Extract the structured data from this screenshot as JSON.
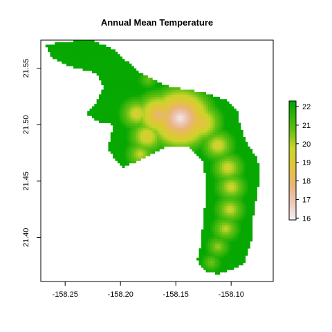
{
  "chart_data": {
    "type": "heatmap",
    "title": "Annual Mean Temperature",
    "xlabel": "",
    "ylabel": "",
    "xlim": [
      -158.272,
      -158.062
    ],
    "ylim": [
      21.361,
      21.575
    ],
    "x_ticks": [
      -158.25,
      -158.2,
      -158.15,
      -158.1
    ],
    "x_tick_labels": [
      "-158.25",
      "-158.20",
      "-158.15",
      "-158.10"
    ],
    "y_ticks": [
      21.4,
      21.45,
      21.5,
      21.55
    ],
    "y_tick_labels": [
      "21.40",
      "21.45",
      "21.50",
      "21.55"
    ],
    "legend": {
      "placement": "right",
      "range": [
        15.9,
        22.3
      ],
      "ticks": [
        16,
        17,
        18,
        19,
        20,
        21,
        22
      ],
      "tick_labels": [
        "16",
        "17",
        "18",
        "19",
        "20",
        "21",
        "22"
      ]
    },
    "color_scale": [
      {
        "value": 15.9,
        "color": "#f2f2f2"
      },
      {
        "value": 16.8,
        "color": "#eec9bd"
      },
      {
        "value": 17.8,
        "color": "#e8b47a"
      },
      {
        "value": 18.8,
        "color": "#e3c43a"
      },
      {
        "value": 19.8,
        "color": "#c9d52a"
      },
      {
        "value": 20.8,
        "color": "#5fbf12"
      },
      {
        "value": 22.3,
        "color": "#00a600"
      }
    ],
    "nodata_color": "#ffffff",
    "grid": false,
    "ridge": [
      {
        "x": -158.146,
        "y": 21.506,
        "v": 16.0
      },
      {
        "x": -158.165,
        "y": 21.509,
        "v": 17.6
      },
      {
        "x": -158.185,
        "y": 21.51,
        "v": 19.1
      },
      {
        "x": -158.176,
        "y": 21.49,
        "v": 18.9
      },
      {
        "x": -158.182,
        "y": 21.474,
        "v": 19.6
      },
      {
        "x": -158.128,
        "y": 21.502,
        "v": 18.2
      },
      {
        "x": -158.112,
        "y": 21.482,
        "v": 19.2
      },
      {
        "x": -158.103,
        "y": 21.462,
        "v": 19.3
      },
      {
        "x": -158.1,
        "y": 21.445,
        "v": 19.4
      },
      {
        "x": -158.101,
        "y": 21.425,
        "v": 19.5
      },
      {
        "x": -158.105,
        "y": 21.408,
        "v": 19.7
      },
      {
        "x": -158.112,
        "y": 21.392,
        "v": 20.1
      },
      {
        "x": -158.118,
        "y": 21.378,
        "v": 20.5
      },
      {
        "x": -158.175,
        "y": 21.54,
        "v": 20.6
      }
    ],
    "extent": [
      [
        -158.268,
        21.571
      ],
      [
        -158.25,
        21.573
      ],
      [
        -158.228,
        21.576
      ],
      [
        -158.205,
        21.566
      ],
      [
        -158.185,
        21.548
      ],
      [
        -158.16,
        21.535
      ],
      [
        -158.14,
        21.531
      ],
      [
        -158.125,
        21.529
      ],
      [
        -158.105,
        21.522
      ],
      [
        -158.095,
        21.514
      ],
      [
        -158.092,
        21.5
      ],
      [
        -158.086,
        21.484
      ],
      [
        -158.078,
        21.472
      ],
      [
        -158.074,
        21.462
      ],
      [
        -158.076,
        21.442
      ],
      [
        -158.08,
        21.42
      ],
      [
        -158.082,
        21.396
      ],
      [
        -158.088,
        21.378
      ],
      [
        -158.098,
        21.372
      ],
      [
        -158.112,
        21.368
      ],
      [
        -158.125,
        21.371
      ],
      [
        -158.131,
        21.38
      ],
      [
        -158.128,
        21.392
      ],
      [
        -158.126,
        21.408
      ],
      [
        -158.124,
        21.425
      ],
      [
        -158.122,
        21.44
      ],
      [
        -158.124,
        21.458
      ],
      [
        -158.126,
        21.468
      ],
      [
        -158.138,
        21.48
      ],
      [
        -158.158,
        21.481
      ],
      [
        -158.176,
        21.472
      ],
      [
        -158.198,
        21.462
      ],
      [
        -158.212,
        21.478
      ],
      [
        -158.209,
        21.49
      ],
      [
        -158.206,
        21.5
      ],
      [
        -158.22,
        21.503
      ],
      [
        -158.232,
        21.51
      ],
      [
        -158.222,
        21.52
      ],
      [
        -158.215,
        21.533
      ],
      [
        -158.222,
        21.546
      ],
      [
        -158.246,
        21.552
      ],
      [
        -158.262,
        21.56
      ]
    ]
  }
}
